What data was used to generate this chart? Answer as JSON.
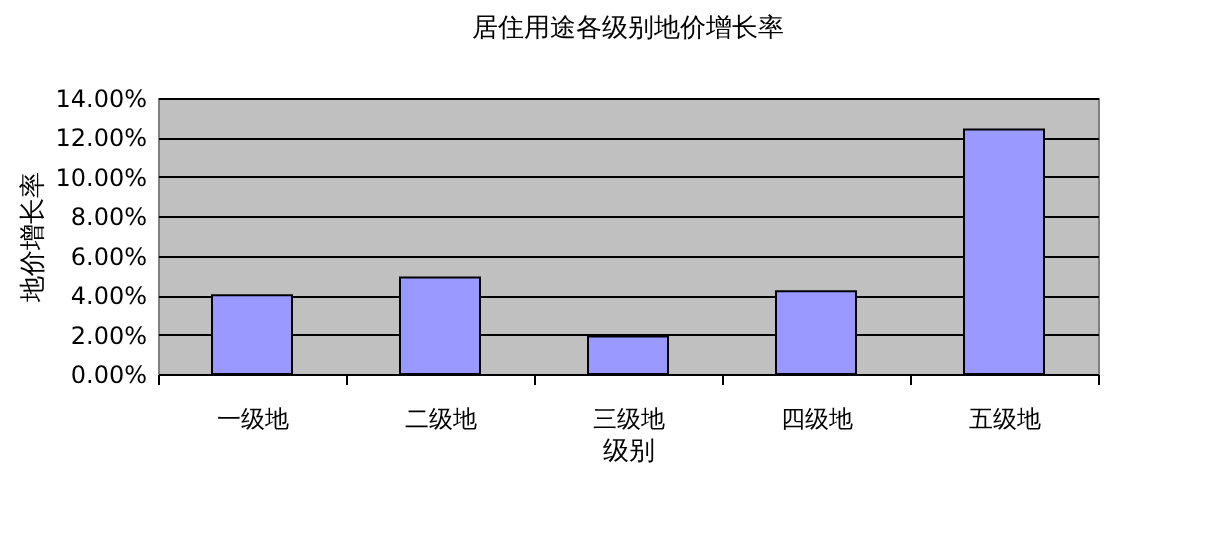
{
  "chart_data": {
    "type": "bar",
    "title": "居住用途各级别地价增长率",
    "xlabel": "级别",
    "ylabel": "地价增长率",
    "categories": [
      "一级地",
      "二级地",
      "三级地",
      "四级地",
      "五级地"
    ],
    "values": [
      4.0,
      4.9,
      1.9,
      4.2,
      12.4
    ],
    "color": "#9999ff",
    "ylim": [
      0,
      14
    ],
    "yticks": [
      {
        "value": 0,
        "label": "0.00%"
      },
      {
        "value": 2,
        "label": "2.00%"
      },
      {
        "value": 4,
        "label": "4.00%"
      },
      {
        "value": 6,
        "label": "6.00%"
      },
      {
        "value": 8,
        "label": "8.00%"
      },
      {
        "value": 10,
        "label": "10.00%"
      },
      {
        "value": 12,
        "label": "12.00%"
      },
      {
        "value": 14,
        "label": "14.00%"
      }
    ],
    "grid": "y"
  }
}
